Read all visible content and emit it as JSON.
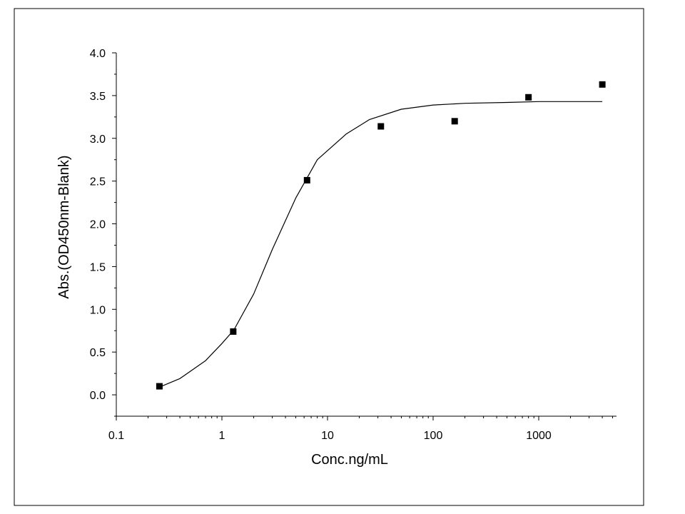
{
  "chart_data": {
    "type": "scatter",
    "xlabel": "Conc.ng/mL",
    "ylabel": "Abs.(OD450nm-Blank)",
    "x_scale": "log",
    "xlim": [
      0.1,
      5000
    ],
    "ylim": [
      -0.25,
      4.0
    ],
    "x_ticks": [
      0.1,
      1,
      10,
      100,
      1000
    ],
    "x_tick_labels": [
      "0.1",
      "1",
      "10",
      "100",
      "1000"
    ],
    "y_ticks": [
      0.0,
      0.5,
      1.0,
      1.5,
      2.0,
      2.5,
      3.0,
      3.5,
      4.0
    ],
    "y_tick_labels": [
      "0.0",
      "0.5",
      "1.0",
      "1.5",
      "2.0",
      "2.5",
      "3.0",
      "3.5",
      "4.0"
    ],
    "grid": false,
    "legend": "none",
    "series": [
      {
        "kind": "points",
        "marker": "square",
        "color": "#000000",
        "x": [
          0.256,
          1.28,
          6.4,
          32,
          160,
          800,
          4000
        ],
        "y": [
          0.1,
          0.74,
          2.51,
          3.14,
          3.2,
          3.48,
          3.63
        ]
      },
      {
        "kind": "fit-curve",
        "color": "#000000",
        "x": [
          0.256,
          0.4,
          0.7,
          1.0,
          1.3,
          2.0,
          3.0,
          5.0,
          8.0,
          15,
          25,
          50,
          100,
          200,
          500,
          1000,
          4000
        ],
        "y": [
          0.09,
          0.19,
          0.4,
          0.6,
          0.76,
          1.18,
          1.7,
          2.3,
          2.75,
          3.05,
          3.22,
          3.34,
          3.39,
          3.41,
          3.42,
          3.43,
          3.43
        ]
      }
    ]
  }
}
